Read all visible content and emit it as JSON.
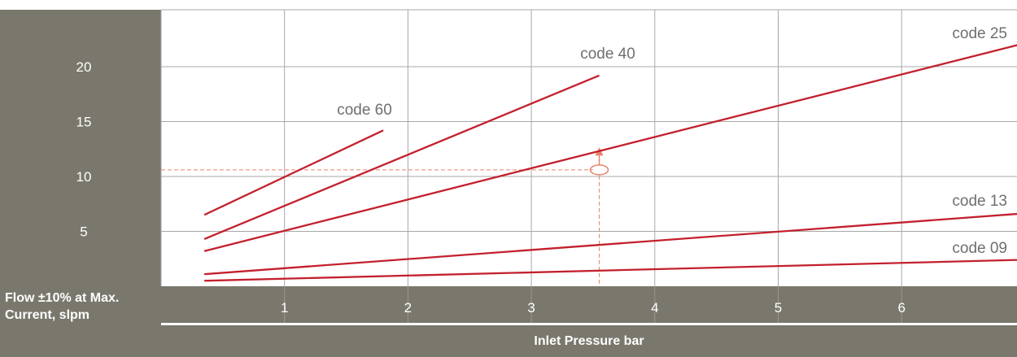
{
  "chart_data": {
    "type": "line",
    "ylabel": "Flow ±10% at Max. Current, slpm",
    "xlabel": "Inlet Pressure bar",
    "x_ticks": [
      1,
      2,
      3,
      4,
      5,
      6
    ],
    "y_ticks": [
      5,
      10,
      15,
      20
    ],
    "xlim": [
      0,
      7
    ],
    "ylim": [
      0,
      25
    ],
    "grid": true,
    "series": [
      {
        "name": "code 60",
        "x": [
          0.35,
          1.8
        ],
        "y": [
          6.5,
          14.2
        ]
      },
      {
        "name": "code 40",
        "x": [
          0.35,
          3.55
        ],
        "y": [
          4.3,
          19.2
        ]
      },
      {
        "name": "code 25",
        "x": [
          0.35,
          6.95
        ],
        "y": [
          3.2,
          22.0
        ]
      },
      {
        "name": "code 13",
        "x": [
          0.35,
          6.95
        ],
        "y": [
          1.1,
          6.6
        ]
      },
      {
        "name": "code 09",
        "x": [
          0.35,
          6.95
        ],
        "y": [
          0.5,
          2.4
        ]
      }
    ],
    "annotation": {
      "x": 3.55,
      "y": 10.6
    },
    "colors": {
      "panel": "#7a776c",
      "grid": "#a8a8a8",
      "line": "#c3202d",
      "guide": "#e8836a",
      "series_label": "#6f6f6f"
    }
  }
}
